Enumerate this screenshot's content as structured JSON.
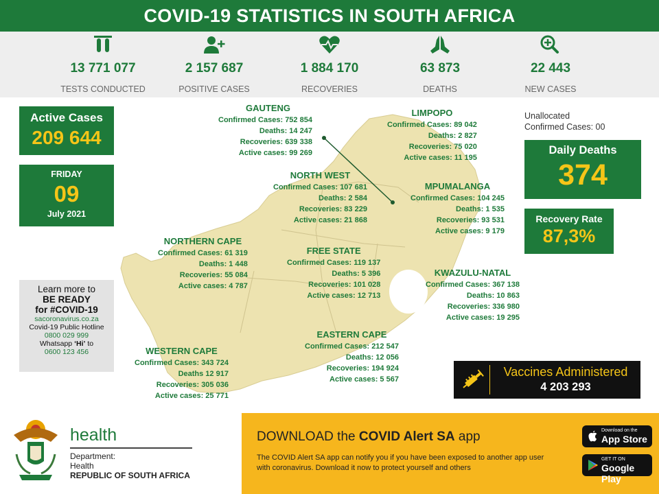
{
  "header": {
    "title": "COVID-19 STATISTICS IN SOUTH AFRICA"
  },
  "stats": [
    {
      "icon": "test-tubes-icon",
      "value": "13 771 077",
      "label": "TESTS CONDUCTED"
    },
    {
      "icon": "add-person-icon",
      "value": "2 157 687",
      "label": "POSITIVE CASES"
    },
    {
      "icon": "heartbeat-icon",
      "value": "1 884  170",
      "label": "RECOVERIES"
    },
    {
      "icon": "praying-hands-icon",
      "value": "63 873",
      "label": "DEATHS"
    },
    {
      "icon": "zoom-plus-icon",
      "value": "22 443",
      "label": "NEW CASES"
    }
  ],
  "active_cases": {
    "title": "Active Cases",
    "value": "209 644"
  },
  "date": {
    "weekday": "FRIDAY",
    "day": "09",
    "month_year": "July 2021"
  },
  "learn_more": {
    "line1": "Learn more to",
    "line2": "BE READY",
    "line3": "for #COVID-19",
    "website": "sacoronavirus.co.za",
    "hotline_label": "Covid-19 Public Hotline",
    "hotline_number": "0800 029 999",
    "whatsapp_pre": "Whatsapp ",
    "whatsapp_hi": "‘Hi’",
    "whatsapp_post": " to",
    "whatsapp_number": "0600 123 456"
  },
  "unallocated": {
    "line1": "Unallocated",
    "line2": "Confirmed Cases: 00"
  },
  "daily_deaths": {
    "title": "Daily Deaths",
    "value": "374"
  },
  "recovery_rate": {
    "title": "Recovery Rate",
    "value": "87,3%"
  },
  "provinces": [
    {
      "name": "GAUTENG",
      "confirmed": "Confirmed Cases: 752 854",
      "deaths": "Deaths: 14 247",
      "recoveries": "Recoveries: 639 338",
      "active": "Active cases: 99 269"
    },
    {
      "name": "LIMPOPO",
      "confirmed": "Confirmed Cases: 89 042",
      "deaths": "Deaths: 2 827",
      "recoveries": "Recoveries: 75 020",
      "active": "Active cases: 11 195"
    },
    {
      "name": "NORTH WEST",
      "confirmed": "Confirmed Cases: 107 681",
      "deaths": "Deaths: 2 584",
      "recoveries": "Recoveries: 83 229",
      "active": "Active cases: 21 868"
    },
    {
      "name": "MPUMALANGA",
      "confirmed": "Confirmed Cases: 104 245",
      "deaths": "Deaths:  1 535",
      "recoveries": "Recoveries: 93 531",
      "active": "Active cases: 9  179"
    },
    {
      "name": "NORTHERN CAPE",
      "confirmed": "Confirmed Cases: 61 319",
      "deaths": "Deaths: 1 448",
      "recoveries": "Recoveries: 55 084",
      "active": "Active cases: 4 787"
    },
    {
      "name": "FREE STATE",
      "confirmed": "Confirmed Cases: 119 137",
      "deaths": "Deaths: 5 396",
      "recoveries": "Recoveries:  101 028",
      "active": "Active cases: 12 713"
    },
    {
      "name": "KWAZULU-NATAL",
      "confirmed": "Confirmed Cases: 367 138",
      "deaths": "Deaths: 10 863",
      "recoveries": "Recoveries: 336 980",
      "active": "Active cases: 19 295"
    },
    {
      "name": "EASTERN CAPE",
      "confirmed": "Confirmed Cases: 212 547",
      "deaths": "Deaths: 12 056",
      "recoveries": "Recoveries: 194 924",
      "active": "Active cases: 5 567"
    },
    {
      "name": "WESTERN CAPE",
      "confirmed": "Confirmed Cases: 343 724",
      "deaths": "Deaths 12 917",
      "recoveries": "Recoveries: 305 036",
      "active": "Active cases: 25 771"
    }
  ],
  "vaccines": {
    "icon": "syringe-icon",
    "title": "Vaccines Administered",
    "value": "4 203 293"
  },
  "footer": {
    "health_word": "health",
    "dept_line1": "Department:",
    "dept_line2": "Health",
    "dept_line3": "REPUBLIC OF SOUTH AFRICA",
    "banner_pre": "DOWNLOAD the ",
    "banner_bold": "COVID Alert SA",
    "banner_post": " app",
    "banner_text": "The COVID Alert SA app can notify you if you have been exposed to another app user with coronavirus. Download it now to protect yourself and others",
    "appstore_small": "Download on the",
    "appstore_large": "App Store",
    "googleplay_small": "GET IT ON",
    "googleplay_large": "Google Play"
  },
  "colors": {
    "primary_green": "#1e7a3a",
    "accent_yellow": "#f5c518",
    "banner_yellow": "#f6b61d",
    "map_fill": "#ede3b0"
  }
}
